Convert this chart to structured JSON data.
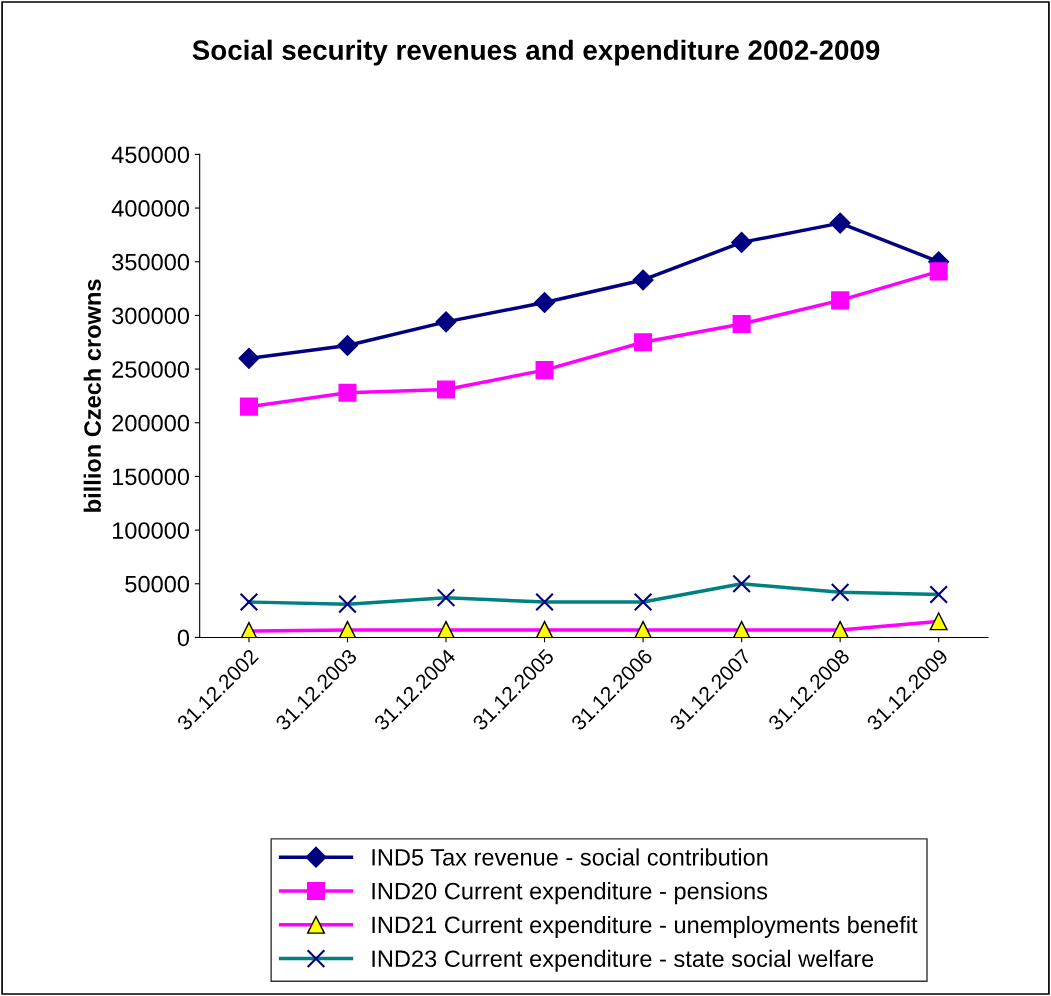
{
  "chart_data": {
    "type": "line",
    "title": "Social security revenues and expenditure 2002-2009",
    "ylabel": "billion Czech crowns",
    "categories": [
      "31.12.2002",
      "31.12.2003",
      "31.12.2004",
      "31.12.2005",
      "31.12.2006",
      "31.12.2007",
      "31.12.2008",
      "31.12.2009"
    ],
    "ylim": [
      0,
      450000
    ],
    "yticks": [
      0,
      50000,
      100000,
      150000,
      200000,
      250000,
      300000,
      350000,
      400000,
      450000
    ],
    "grid": false,
    "legend": "bottom",
    "series": [
      {
        "name": "IND5 Tax revenue - social contribution",
        "color": "#000080",
        "marker": "diamond",
        "values": [
          260000,
          272000,
          294000,
          312000,
          333000,
          368000,
          386000,
          350000
        ]
      },
      {
        "name": "IND20 Current expenditure - pensions",
        "color": "#ff00ff",
        "marker": "square",
        "values": [
          215000,
          228000,
          231000,
          249000,
          275000,
          292000,
          314000,
          341000
        ]
      },
      {
        "name": "IND21 Current expenditure - unemployments benefit",
        "color": "#ff00ff",
        "marker": "triangle",
        "values": [
          6000,
          7000,
          7000,
          7000,
          7000,
          7000,
          7000,
          15000
        ]
      },
      {
        "name": "IND23 Current expenditure - state social welfare",
        "color": "#008080",
        "marker": "cross",
        "values": [
          33000,
          31000,
          37000,
          33000,
          33000,
          50000,
          42000,
          40000
        ]
      }
    ]
  }
}
